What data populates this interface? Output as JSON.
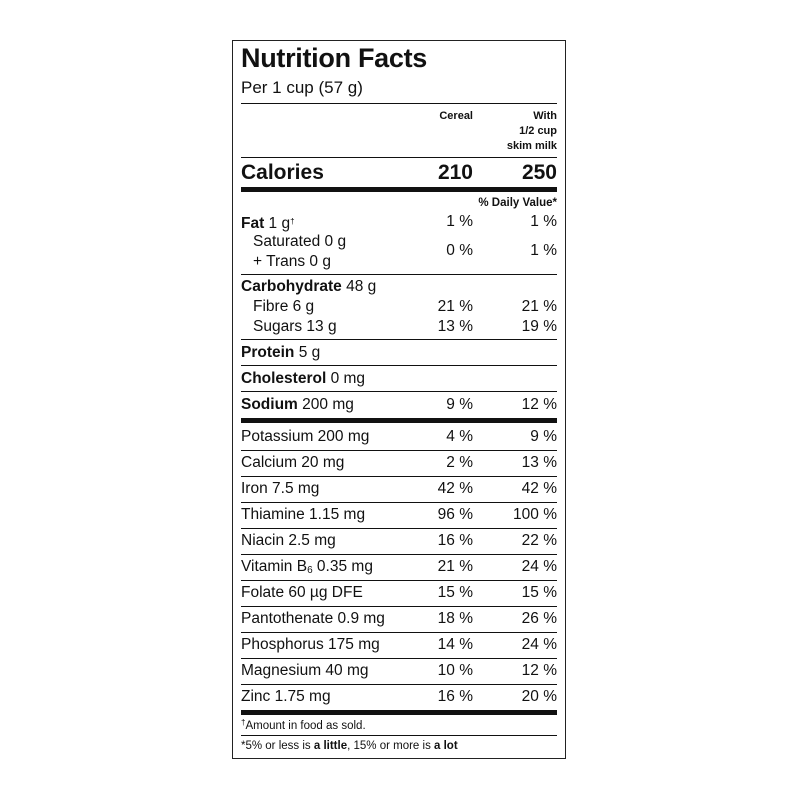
{
  "title": "Nutrition Facts",
  "serving": "Per 1 cup (57 g)",
  "columns": {
    "cereal": "Cereal",
    "milk_1": "With",
    "milk_2": "1/2 cup",
    "milk_3": "skim milk"
  },
  "calories": {
    "label": "Calories",
    "cereal": "210",
    "milk": "250"
  },
  "dv_header": "% Daily Value*",
  "fat": {
    "label": "Fat",
    "amount": " 1 g",
    "mark": "†",
    "cereal": "1 %",
    "milk": "1 %"
  },
  "saturated": {
    "line1": "Saturated 0 g",
    "line2": "+ Trans 0 g",
    "cereal": "0 %",
    "milk": "1 %"
  },
  "carbohydrate": {
    "label": "Carbohydrate",
    "amount": " 48 g"
  },
  "fibre": {
    "label": "Fibre 6 g",
    "cereal": "21 %",
    "milk": "21 %"
  },
  "sugars": {
    "label": "Sugars 13 g",
    "cereal": "13 %",
    "milk": "19 %"
  },
  "protein": {
    "label": "Protein",
    "amount": " 5 g"
  },
  "cholesterol": {
    "label": "Cholesterol",
    "amount": " 0 mg"
  },
  "sodium": {
    "label": "Sodium",
    "amount": " 200 mg",
    "cereal": "9 %",
    "milk": "12 %"
  },
  "vitamins": [
    {
      "name": "Potassium 200 mg",
      "cereal": "4 %",
      "milk": "9 %"
    },
    {
      "name": "Calcium 20 mg",
      "cereal": "2 %",
      "milk": "13 %"
    },
    {
      "name": "Iron 7.5 mg",
      "cereal": "42 %",
      "milk": "42 %"
    },
    {
      "name": "Thiamine 1.15 mg",
      "cereal": "96 %",
      "milk": "100 %"
    },
    {
      "name": "Niacin 2.5 mg",
      "cereal": "16 %",
      "milk": "22 %"
    },
    {
      "name_pre": "Vitamin B",
      "name_sub": "6",
      "name_post": " 0.35 mg",
      "cereal": "21 %",
      "milk": "24 %"
    },
    {
      "name": "Folate 60 µg DFE",
      "cereal": "15 %",
      "milk": "15 %"
    },
    {
      "name": "Pantothenate 0.9 mg",
      "cereal": "18 %",
      "milk": "26 %"
    },
    {
      "name": "Phosphorus 175 mg",
      "cereal": "14 %",
      "milk": "24 %"
    },
    {
      "name": "Magnesium 40 mg",
      "cereal": "10 %",
      "milk": "12 %"
    },
    {
      "name": "Zinc 1.75 mg",
      "cereal": "16 %",
      "milk": "20 %"
    }
  ],
  "footnote1": {
    "mark": "†",
    "text": "Amount in food as sold."
  },
  "footnote2": {
    "pre": "*5% or less is ",
    "little": "a little",
    "mid": ", 15% or more is ",
    "lot": "a lot"
  }
}
